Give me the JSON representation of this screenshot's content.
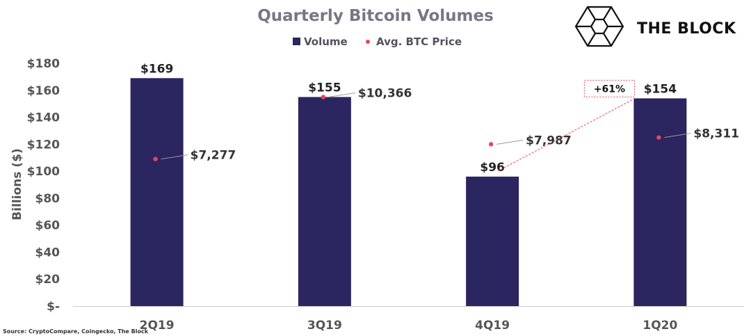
{
  "brand": {
    "name": "THE BLOCK",
    "logo_icon": "cube-icon"
  },
  "source": "Source: CryptoCompare, Coingecko, The Block",
  "chart_data": {
    "type": "bar",
    "title": "Quarterly Bitcoin Volumes",
    "ylabel": "Billions ($)",
    "xlabel": "",
    "ylim": [
      0,
      180
    ],
    "yticks": [
      0,
      20,
      40,
      60,
      80,
      100,
      120,
      140,
      160,
      180
    ],
    "ytick_labels": [
      "$-",
      "$20",
      "$40",
      "$60",
      "$80",
      "$100",
      "$120",
      "$140",
      "$160",
      "$180"
    ],
    "categories": [
      "2Q19",
      "3Q19",
      "4Q19",
      "1Q20"
    ],
    "series": [
      {
        "name": "Volume",
        "kind": "bar",
        "color": "#2b2560",
        "values": [
          169,
          155,
          96,
          154
        ],
        "labels": [
          "$169",
          "$155",
          "$96",
          "$154"
        ]
      },
      {
        "name": "Avg. BTC Price",
        "kind": "scatter",
        "color": "#e8455f",
        "values": [
          7277,
          10366,
          7987,
          8311
        ],
        "plotted_at_axis_value": [
          109,
          155,
          120,
          125
        ],
        "labels": [
          "$7,277",
          "$10,366",
          "$7,987",
          "$8,311"
        ]
      }
    ],
    "legend": {
      "position": "top-center",
      "entries": [
        "Volume",
        "Avg. BTC Price"
      ]
    },
    "grid": false,
    "annotation": {
      "text": "+61%",
      "from": "4Q19",
      "to": "1Q20",
      "color": "#e8455f"
    }
  }
}
